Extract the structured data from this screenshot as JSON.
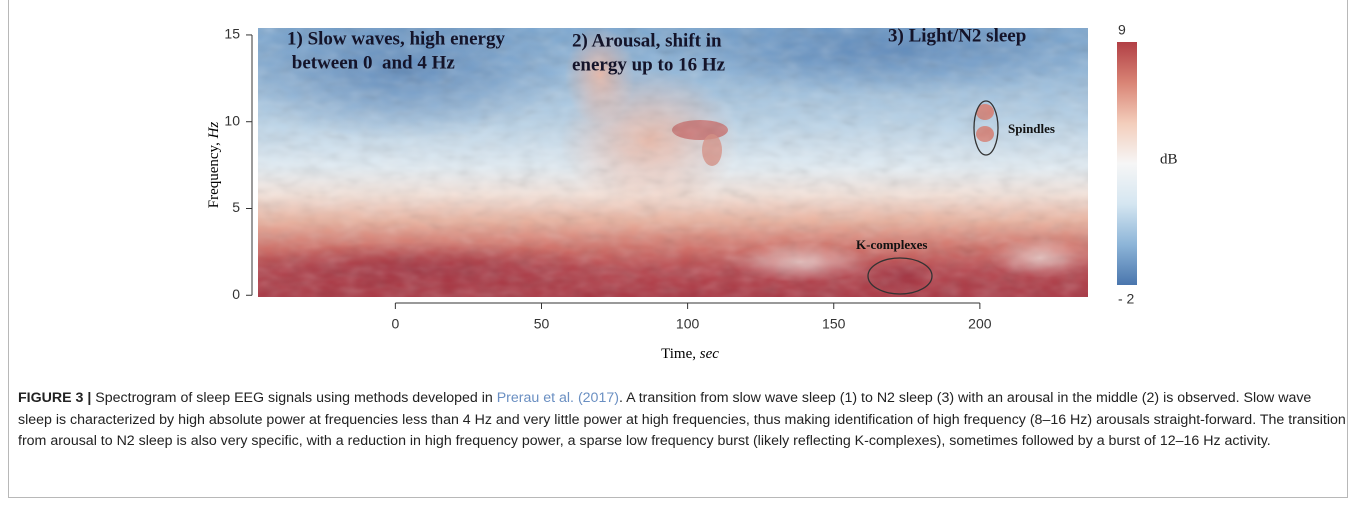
{
  "chart_data": {
    "type": "heatmap",
    "xlabel": "Time,",
    "xlabel_unit": "sec",
    "ylabel": "Frequency,",
    "ylabel_unit": "Hz",
    "xlim": [
      -47,
      237
    ],
    "ylim": [
      -0.1,
      15.4
    ],
    "xticks": [
      0,
      50,
      100,
      150,
      200
    ],
    "yticks": [
      0,
      5,
      10,
      15
    ],
    "colorbar": {
      "label": "dB",
      "lim": [
        -2,
        9
      ],
      "ticks": [
        9,
        {
          "value": -2,
          "label": "- 2"
        }
      ],
      "colormap": [
        "#4a76ad",
        "#8db5d8",
        "#d5e6f1",
        "#f6f6f6",
        "#f3cdbb",
        "#d98475",
        "#b13f45"
      ]
    },
    "annotations": [
      {
        "lines": [
          "1) Slow waves, high energy",
          " between 0  and 4 Hz"
        ]
      },
      {
        "lines": [
          "2) Arousal, shift in",
          "energy up to 16 Hz"
        ]
      },
      {
        "lines": [
          "3) Light/N2 sleep"
        ]
      }
    ],
    "callouts": [
      "Spindles",
      "K-complexes"
    ]
  },
  "caption": {
    "label": "FIGURE 3 |",
    "text_before": " Spectrogram of sleep EEG signals using methods developed in ",
    "link": "Prerau et al. (2017)",
    "text_after": ". A transition from slow wave sleep (1) to N2 sleep (3) with an arousal in the middle (2) is observed. Slow wave sleep is characterized by high absolute power at frequencies less than 4 Hz and very little power at high frequencies, thus making identification of high frequency (8–16 Hz) arousals straight-forward. The transition from arousal to N2 sleep is also very specific, with a reduction in high frequency power, a sparse low frequency burst (likely reflecting K-complexes), sometimes followed by a burst of 12–16 Hz activity."
  }
}
